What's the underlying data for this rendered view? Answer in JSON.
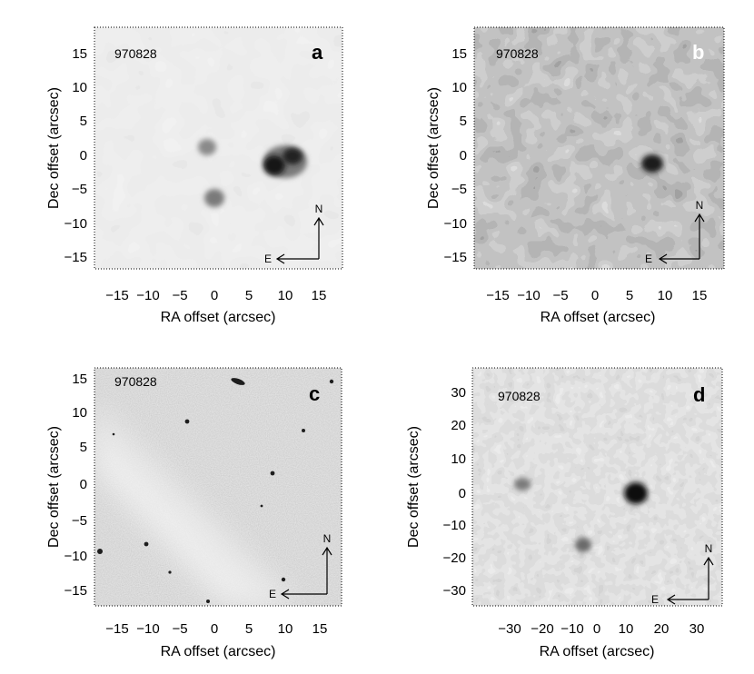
{
  "panels": [
    {
      "id": "a",
      "letter": "a",
      "grb_id": "970828",
      "xlabel": "RA offset (arcsec)",
      "ylabel": "Dec offset (arcsec)",
      "xticks": [
        "−15",
        "−10",
        "−5",
        "0",
        "5",
        "10",
        "15"
      ],
      "yticks": [
        "15",
        "10",
        "5",
        "0",
        "−5",
        "−10",
        "−15"
      ],
      "compass": {
        "north": "N",
        "east": "E"
      },
      "image_style": "smooth light gray contour map with a dark source near (+9, −1) arcsec"
    },
    {
      "id": "b",
      "letter": "b",
      "grb_id": "970828",
      "xlabel": "RA offset (arcsec)",
      "ylabel": "Dec offset (arcsec)",
      "xticks": [
        "−15",
        "−10",
        "−5",
        "0",
        "5",
        "10",
        "15"
      ],
      "yticks": [
        "15",
        "10",
        "5",
        "0",
        "−5",
        "−10",
        "−15"
      ],
      "compass": {
        "north": "N",
        "east": "E"
      },
      "image_style": "mottled medium-gray noise map"
    },
    {
      "id": "c",
      "letter": "c",
      "grb_id": "970828",
      "xlabel": "RA offset (arcsec)",
      "ylabel": "Dec offset (arcsec)",
      "xticks": [
        "−15",
        "−10",
        "−5",
        "0",
        "5",
        "10",
        "15"
      ],
      "yticks": [
        "15",
        "10",
        "5",
        "0",
        "−5",
        "−10",
        "−15"
      ],
      "compass": {
        "north": "N",
        "east": "E"
      },
      "image_style": "grainy gray field with a bright diagonal band and small dark specks"
    },
    {
      "id": "d",
      "letter": "d",
      "grb_id": "970828",
      "xlabel": "RA offset (arcsec)",
      "ylabel": "Dec offset (arcsec)",
      "xticks": [
        "−30",
        "−20",
        "−10",
        "0",
        "10",
        "20",
        "30"
      ],
      "yticks": [
        "30",
        "20",
        "10",
        "0",
        "−10",
        "−20",
        "−30"
      ],
      "compass": {
        "north": "N",
        "east": "E"
      },
      "image_style": "blocky pixelated gray map with a dark source near (+11, 0) arcsec"
    }
  ],
  "colors": {
    "panel_a_bg": "#d6d6d6",
    "panel_b_bg": "#7e7e7e",
    "panel_c_bg": "#b4b4b4",
    "panel_d_bg": "#c6c6c6",
    "ink": "#000000",
    "letter_dark": "#000000",
    "letter_light": "#ffffff"
  }
}
